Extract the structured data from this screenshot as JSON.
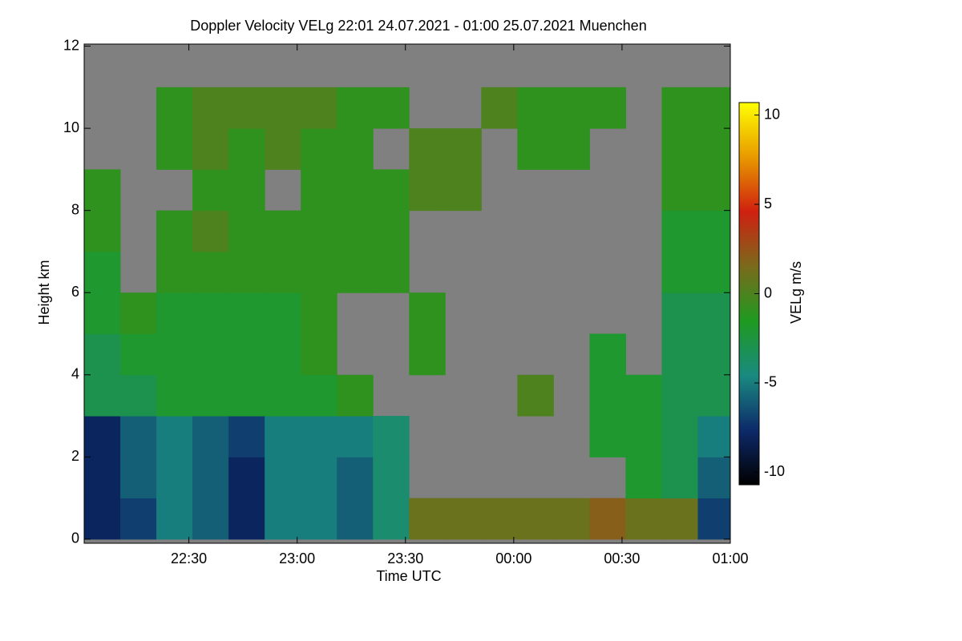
{
  "chart_data": {
    "type": "heatmap",
    "title": "Doppler Velocity VELg   22:01 24.07.2021 - 01:00 25.07.2021 Muenchen",
    "x_label": "Time UTC",
    "y_label": "Height km",
    "colorbar_label": "VELg m/s",
    "xlim": [
      1,
      180
    ],
    "xticks": [
      {
        "value": 30,
        "label": "22:30"
      },
      {
        "value": 60,
        "label": "23:00"
      },
      {
        "value": 90,
        "label": "23:30"
      },
      {
        "value": 120,
        "label": "00:00"
      },
      {
        "value": 150,
        "label": "00:30"
      },
      {
        "value": 180,
        "label": "01:00"
      }
    ],
    "ylim": [
      -0.1,
      12.05
    ],
    "yticks": [
      0,
      2,
      4,
      6,
      8,
      10,
      12
    ],
    "clim": [
      -10.7,
      10.7
    ],
    "cticks": [
      -10,
      -5,
      0,
      5,
      10
    ],
    "colormap": [
      "#000000",
      "#0d2a6a",
      "#1a8a80",
      "#1f9a20",
      "#7a6a1c",
      "#d02010",
      "#e89a00",
      "#ffff00"
    ],
    "missing_color": "#808080",
    "x_edges": [
      1,
      11,
      21,
      31,
      41,
      51,
      61,
      71,
      81,
      91,
      101,
      111,
      121,
      131,
      141,
      151,
      161,
      171,
      180
    ],
    "y_edges": [
      0,
      1,
      2,
      3,
      4,
      5,
      6,
      7,
      8,
      9,
      10,
      11,
      12
    ],
    "values": [
      [
        -8,
        -7,
        -5,
        -6,
        -8,
        -5,
        -5,
        -6,
        -4,
        1,
        1,
        1,
        1,
        1,
        2,
        1,
        1,
        -7
      ],
      [
        -8,
        -6,
        -5,
        -6,
        -8,
        -5,
        -5,
        -6,
        -4,
        null,
        null,
        null,
        null,
        null,
        null,
        -2,
        -3,
        -6
      ],
      [
        -8,
        -6,
        -5,
        -6,
        -7,
        -5,
        -5,
        -5,
        -4,
        null,
        null,
        null,
        null,
        null,
        -2,
        -2,
        -3,
        -5
      ],
      [
        -3,
        -3,
        -2,
        -2,
        -2,
        -2,
        -2,
        -1,
        null,
        null,
        null,
        null,
        0,
        null,
        -2,
        -2,
        -3,
        -3
      ],
      [
        -3,
        -2,
        -2,
        -2,
        -2,
        -2,
        -1,
        null,
        null,
        -1,
        null,
        null,
        null,
        null,
        -2,
        null,
        -3,
        -3
      ],
      [
        -2,
        -1,
        -2,
        -2,
        -2,
        -2,
        -1,
        null,
        null,
        -1,
        null,
        null,
        null,
        null,
        null,
        null,
        -3,
        -3
      ],
      [
        -2,
        null,
        -1,
        -1,
        -1,
        -1,
        -1,
        -1,
        -1,
        null,
        null,
        null,
        null,
        null,
        null,
        null,
        -2,
        -2
      ],
      [
        -1,
        null,
        -1,
        0,
        -1,
        -1,
        -1,
        -1,
        -1,
        null,
        null,
        null,
        null,
        null,
        null,
        null,
        -2,
        -2
      ],
      [
        -1,
        null,
        null,
        -1,
        -1,
        null,
        -1,
        -1,
        -1,
        0,
        0,
        null,
        null,
        null,
        null,
        null,
        -1,
        -1
      ],
      [
        null,
        null,
        -1,
        0,
        -1,
        0,
        -1,
        -1,
        null,
        0,
        0,
        null,
        -1,
        -1,
        null,
        null,
        -1,
        -1
      ],
      [
        null,
        null,
        -1,
        0,
        0,
        0,
        0,
        -1,
        -1,
        null,
        null,
        0,
        -1,
        -1,
        -1,
        null,
        -1,
        -1
      ],
      [
        null,
        null,
        null,
        null,
        null,
        null,
        null,
        null,
        null,
        null,
        null,
        null,
        null,
        null,
        null,
        null,
        null,
        null
      ]
    ]
  }
}
